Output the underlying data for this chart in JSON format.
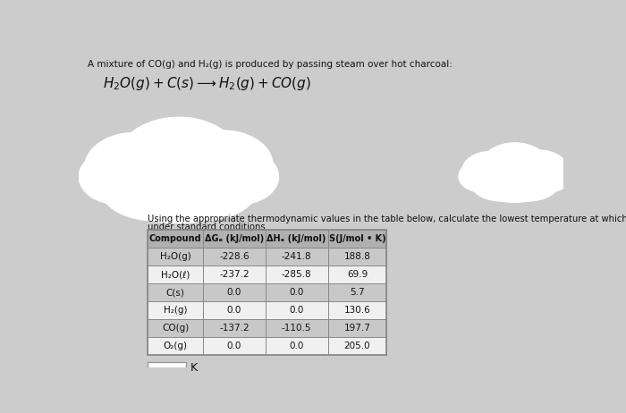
{
  "title_line": "A mixture of CO(g) and H₂(g) is produced by passing steam over hot charcoal:",
  "equation": "H₂O(g) + C(s) ⟶ H₂(g) + CO(g)",
  "desc1": "Using the appropriate thermodynamic values in the table below, calculate the lowest temperature at which the reaction is spontaneous",
  "desc2": "under standard conditions.",
  "table_headers": [
    "Compound",
    "ΔGₑ (kJ/mol)",
    "ΔHₑ (kJ/mol)",
    "S(J/mol • K)"
  ],
  "table_rows": [
    [
      "H₂O(g)",
      "-228.6",
      "-241.8",
      "188.8"
    ],
    [
      "H₂O(ℓ)",
      "-237.2",
      "-285.8",
      "69.9"
    ],
    [
      "C(s)",
      "0.0",
      "0.0",
      "5.7"
    ],
    [
      "H₂(g)",
      "0.0",
      "0.0",
      "130.6"
    ],
    [
      "CO(g)",
      "-137.2",
      "-110.5",
      "197.7"
    ],
    [
      "O₂(g)",
      "0.0",
      "0.0",
      "205.0"
    ]
  ],
  "answer_box_label": "K",
  "bg_color": "#cccccc",
  "row_colors": [
    "#c8c8c8",
    "#f0f0f0"
  ],
  "header_color": "#b0b0b0",
  "cloud_color": "#ffffff",
  "text_color": "#111111",
  "table_border": "#888888"
}
